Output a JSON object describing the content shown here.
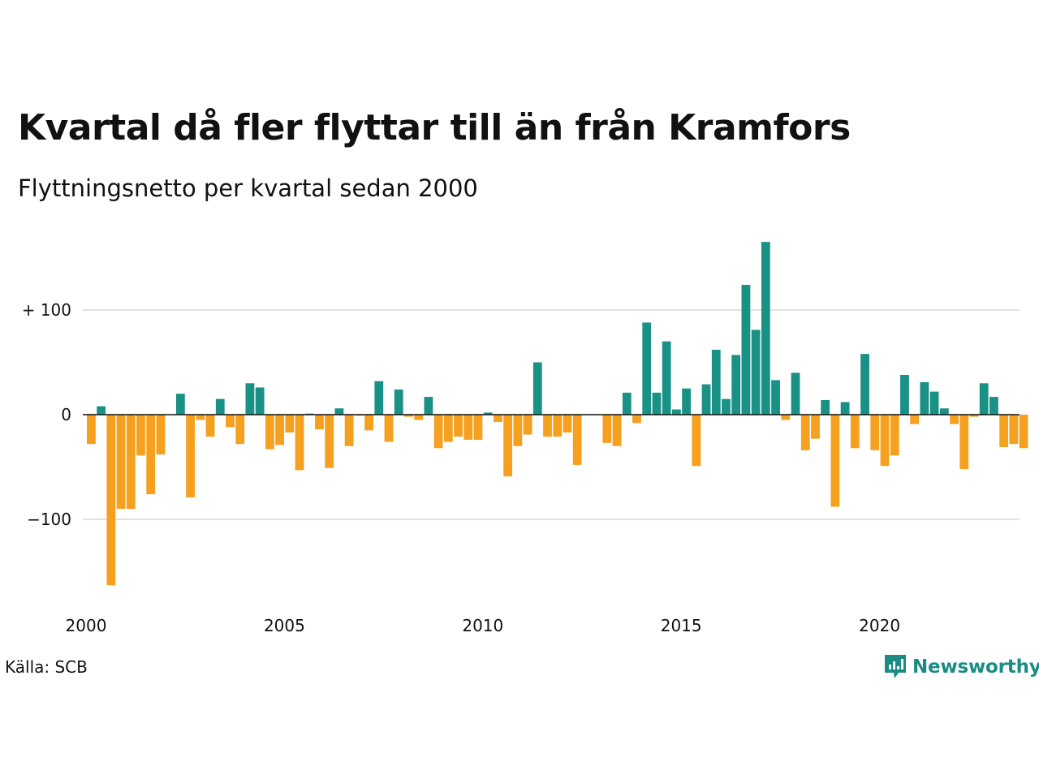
{
  "header": {
    "title": "Kvartal då fler flyttar till än från Kramfors",
    "subtitle": "Flyttningsnetto per kvartal sedan 2000"
  },
  "footer": {
    "source": "Källa: SCB",
    "brand": "Newsworthy",
    "brand_icon": "newsworthy-chat-bar-icon"
  },
  "colors": {
    "positive": "#1a9185",
    "negative": "#f5a01e",
    "grid": "#e2e2e2",
    "zero_line": "#111111",
    "brand": "#1a8c84"
  },
  "chart_data": {
    "type": "bar",
    "ylim": [
      -170,
      170
    ],
    "yticks": [
      100,
      0,
      -100
    ],
    "ytick_labels": [
      "+ 100",
      "0",
      "−100"
    ],
    "xticks": [
      2000,
      2005,
      2010,
      2015,
      2020
    ],
    "xtick_labels": [
      "2000",
      "2005",
      "2010",
      "2015",
      "2020"
    ],
    "x_start": 2000,
    "periods_per_year": 4,
    "grid": true,
    "values": [
      -28,
      8,
      -163,
      -90,
      -90,
      -39,
      -76,
      -38,
      0,
      20,
      -79,
      -5,
      -21,
      15,
      -12,
      -28,
      30,
      26,
      -33,
      -29,
      -17,
      -53,
      1,
      -14,
      -51,
      6,
      -30,
      -1,
      -15,
      32,
      -26,
      24,
      -2,
      -5,
      17,
      -32,
      -26,
      -21,
      -24,
      -24,
      2,
      -7,
      -59,
      -30,
      -19,
      50,
      -21,
      -21,
      -17,
      -48,
      0,
      0,
      -27,
      -30,
      21,
      -8,
      88,
      21,
      70,
      5,
      25,
      -49,
      29,
      62,
      15,
      57,
      124,
      81,
      165,
      33,
      -5,
      40,
      -34,
      -23,
      14,
      -88,
      12,
      -32,
      58,
      -34,
      -49,
      -39,
      38,
      -9,
      31,
      22,
      6,
      -9,
      -52,
      -2,
      30,
      17,
      -31,
      -28,
      -32
    ]
  }
}
